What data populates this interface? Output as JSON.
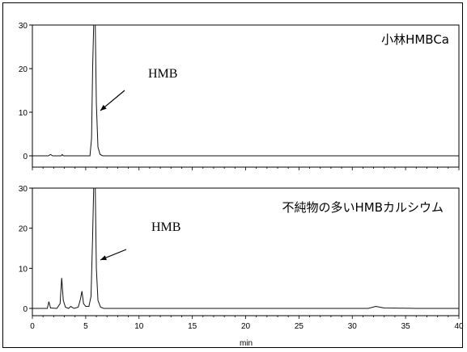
{
  "chart_data": {
    "type": "line",
    "xlabel": "min",
    "xlim": [
      0,
      40
    ],
    "x_ticks": [
      "0",
      "5",
      "10",
      "15",
      "20",
      "25",
      "30",
      "35",
      "40"
    ],
    "panels": [
      {
        "label": "小林HMBCa",
        "ylim": [
          -1,
          30
        ],
        "y_ticks": [
          "0",
          "10",
          "20",
          "30"
        ],
        "annotation": "HMB",
        "series": [
          {
            "points": [
              [
                0,
                0
              ],
              [
                1.5,
                0
              ],
              [
                1.7,
                0.3
              ],
              [
                1.9,
                0
              ],
              [
                2.7,
                0
              ],
              [
                2.8,
                0.3
              ],
              [
                2.9,
                0
              ],
              [
                5.4,
                0
              ],
              [
                5.55,
                4
              ],
              [
                5.65,
                20
              ],
              [
                5.75,
                30
              ],
              [
                5.9,
                30
              ],
              [
                6.0,
                12
              ],
              [
                6.15,
                2
              ],
              [
                6.35,
                0.3
              ],
              [
                6.6,
                0
              ],
              [
                12,
                0
              ],
              [
                20,
                0
              ],
              [
                30,
                0
              ],
              [
                40,
                0
              ]
            ]
          }
        ]
      },
      {
        "label": "不純物の多いHMBカルシウム",
        "ylim": [
          -1,
          30
        ],
        "y_ticks": [
          "0",
          "10",
          "20",
          "30"
        ],
        "annotation": "HMB",
        "series": [
          {
            "points": [
              [
                0,
                0
              ],
              [
                1.4,
                0
              ],
              [
                1.55,
                1.7
              ],
              [
                1.7,
                0.1
              ],
              [
                2.3,
                0
              ],
              [
                2.6,
                1.2
              ],
              [
                2.75,
                7.6
              ],
              [
                2.9,
                2
              ],
              [
                3.1,
                0.3
              ],
              [
                3.4,
                0
              ],
              [
                3.6,
                0.5
              ],
              [
                3.9,
                0
              ],
              [
                4.3,
                0.3
              ],
              [
                4.5,
                2.2
              ],
              [
                4.65,
                4.3
              ],
              [
                4.8,
                1.2
              ],
              [
                5.0,
                0.5
              ],
              [
                5.3,
                0.5
              ],
              [
                5.5,
                3
              ],
              [
                5.65,
                18
              ],
              [
                5.75,
                30
              ],
              [
                5.9,
                30
              ],
              [
                6.0,
                10
              ],
              [
                6.15,
                2
              ],
              [
                6.4,
                0.3
              ],
              [
                6.7,
                0
              ],
              [
                15,
                0
              ],
              [
                30,
                0
              ],
              [
                31.5,
                0
              ],
              [
                32.2,
                0.5
              ],
              [
                33,
                0.1
              ],
              [
                36,
                0
              ],
              [
                40,
                0
              ]
            ]
          }
        ]
      }
    ]
  }
}
